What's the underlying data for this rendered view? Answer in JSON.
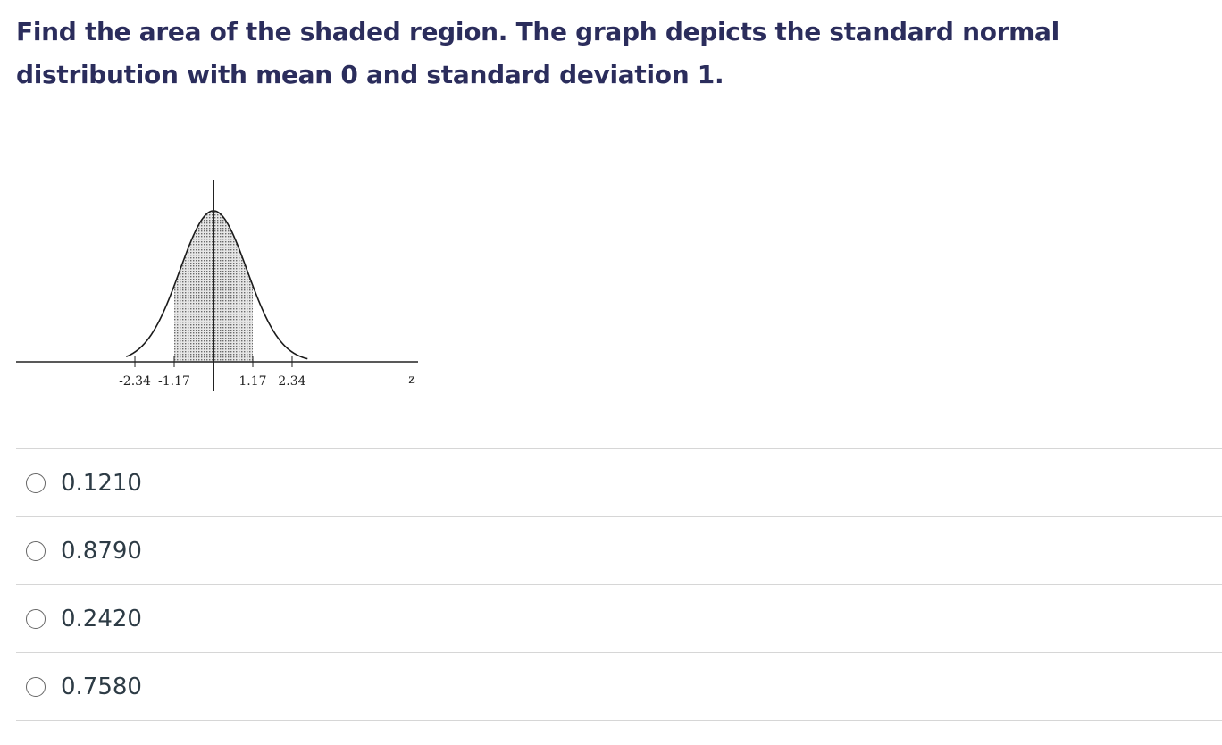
{
  "question": {
    "text": "Find the area of the shaded region. The graph depicts the standard normal distribution with mean 0 and standard deviation 1."
  },
  "chart_data": {
    "type": "area",
    "distribution": "standard normal",
    "mean": 0,
    "sd": 1,
    "shaded_interval": [
      -1.17,
      1.17
    ],
    "x_ticks": [
      -2.34,
      -1.17,
      1.17,
      2.34
    ],
    "tick_labels": [
      "-2.34",
      "-1.17",
      "1.17",
      "2.34"
    ],
    "xlabel": "z",
    "xlim": [
      -2.6,
      2.8
    ]
  },
  "answers": [
    {
      "label": "0.1210",
      "selected": false
    },
    {
      "label": "0.8790",
      "selected": false
    },
    {
      "label": "0.2420",
      "selected": false
    },
    {
      "label": "0.7580",
      "selected": false
    }
  ]
}
